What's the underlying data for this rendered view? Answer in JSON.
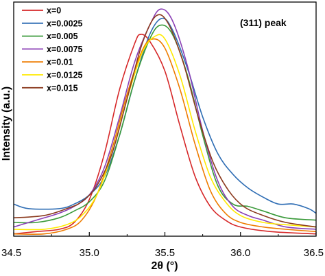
{
  "chart_data": {
    "type": "line",
    "xlabel": "2θ (°)",
    "ylabel": "Intensity (a.u.)",
    "annotation": "(311) peak",
    "xlim": [
      34.5,
      36.5
    ],
    "x_ticks": [
      "34.5",
      "35.0",
      "35.5",
      "36.0",
      "36.5"
    ],
    "y_ticks_shown": false,
    "ylim": [
      0,
      100
    ],
    "legend_position": "top-left",
    "grid": false,
    "series": [
      {
        "name": "x=0",
        "color": "#d62728",
        "points": [
          [
            34.5,
            1
          ],
          [
            34.65,
            2
          ],
          [
            34.8,
            3
          ],
          [
            34.9,
            6
          ],
          [
            35.0,
            16
          ],
          [
            35.1,
            36
          ],
          [
            35.2,
            64
          ],
          [
            35.3,
            84
          ],
          [
            35.34,
            88
          ],
          [
            35.4,
            85
          ],
          [
            35.5,
            72
          ],
          [
            35.6,
            48
          ],
          [
            35.7,
            26
          ],
          [
            35.8,
            13
          ],
          [
            35.9,
            7
          ],
          [
            36.0,
            4
          ],
          [
            36.2,
            2
          ],
          [
            36.5,
            1
          ]
        ]
      },
      {
        "name": "x=0.0025",
        "color": "#2e6db4",
        "points": [
          [
            34.5,
            14
          ],
          [
            34.6,
            12
          ],
          [
            34.8,
            12
          ],
          [
            34.9,
            14
          ],
          [
            35.0,
            18
          ],
          [
            35.1,
            26
          ],
          [
            35.2,
            44
          ],
          [
            35.3,
            68
          ],
          [
            35.4,
            88
          ],
          [
            35.48,
            95
          ],
          [
            35.55,
            90
          ],
          [
            35.65,
            73
          ],
          [
            35.75,
            52
          ],
          [
            35.85,
            36
          ],
          [
            35.95,
            27
          ],
          [
            36.05,
            21
          ],
          [
            36.15,
            17
          ],
          [
            36.25,
            14
          ],
          [
            36.35,
            14
          ],
          [
            36.45,
            12
          ],
          [
            36.5,
            10
          ]
        ]
      },
      {
        "name": "x=0.005",
        "color": "#3a9a3a",
        "points": [
          [
            34.5,
            6
          ],
          [
            34.65,
            6
          ],
          [
            34.8,
            8
          ],
          [
            34.9,
            11
          ],
          [
            35.0,
            15
          ],
          [
            35.1,
            24
          ],
          [
            35.2,
            44
          ],
          [
            35.3,
            68
          ],
          [
            35.4,
            86
          ],
          [
            35.47,
            92
          ],
          [
            35.55,
            88
          ],
          [
            35.65,
            70
          ],
          [
            35.75,
            44
          ],
          [
            35.85,
            22
          ],
          [
            35.95,
            14
          ],
          [
            36.05,
            13
          ],
          [
            36.15,
            11
          ],
          [
            36.3,
            8
          ],
          [
            36.5,
            7
          ]
        ]
      },
      {
        "name": "x=0.0075",
        "color": "#8a3fb5",
        "points": [
          [
            34.5,
            4
          ],
          [
            34.65,
            7
          ],
          [
            34.8,
            10
          ],
          [
            34.9,
            13
          ],
          [
            35.0,
            18
          ],
          [
            35.1,
            30
          ],
          [
            35.2,
            52
          ],
          [
            35.3,
            76
          ],
          [
            35.4,
            92
          ],
          [
            35.47,
            99
          ],
          [
            35.55,
            94
          ],
          [
            35.65,
            74
          ],
          [
            35.75,
            46
          ],
          [
            35.85,
            24
          ],
          [
            35.95,
            13
          ],
          [
            36.05,
            9
          ],
          [
            36.15,
            7
          ],
          [
            36.3,
            4
          ],
          [
            36.5,
            3
          ]
        ]
      },
      {
        "name": "x=0.01",
        "color": "#ee7c00",
        "points": [
          [
            34.5,
            1
          ],
          [
            34.7,
            1
          ],
          [
            34.85,
            3
          ],
          [
            34.95,
            7
          ],
          [
            35.05,
            18
          ],
          [
            35.15,
            38
          ],
          [
            35.25,
            62
          ],
          [
            35.35,
            81
          ],
          [
            35.42,
            86
          ],
          [
            35.5,
            82
          ],
          [
            35.6,
            64
          ],
          [
            35.7,
            40
          ],
          [
            35.8,
            20
          ],
          [
            35.9,
            10
          ],
          [
            36.0,
            6
          ],
          [
            36.15,
            4
          ],
          [
            36.3,
            3
          ],
          [
            36.5,
            2
          ]
        ]
      },
      {
        "name": "x=0.0125",
        "color": "#ffea00",
        "points": [
          [
            34.5,
            3
          ],
          [
            34.7,
            3
          ],
          [
            34.85,
            5
          ],
          [
            34.95,
            9
          ],
          [
            35.05,
            18
          ],
          [
            35.15,
            36
          ],
          [
            35.25,
            60
          ],
          [
            35.35,
            80
          ],
          [
            35.43,
            87
          ],
          [
            35.5,
            86
          ],
          [
            35.6,
            70
          ],
          [
            35.7,
            46
          ],
          [
            35.8,
            26
          ],
          [
            35.9,
            15
          ],
          [
            36.0,
            9
          ],
          [
            36.15,
            6
          ],
          [
            36.3,
            5
          ],
          [
            36.5,
            4
          ]
        ]
      },
      {
        "name": "x=0.015",
        "color": "#8b3a1e",
        "points": [
          [
            34.5,
            8
          ],
          [
            34.7,
            9
          ],
          [
            34.85,
            12
          ],
          [
            34.95,
            15
          ],
          [
            35.05,
            22
          ],
          [
            35.15,
            36
          ],
          [
            35.25,
            60
          ],
          [
            35.35,
            84
          ],
          [
            35.44,
            96
          ],
          [
            35.52,
            93
          ],
          [
            35.62,
            76
          ],
          [
            35.72,
            52
          ],
          [
            35.82,
            32
          ],
          [
            35.92,
            20
          ],
          [
            36.02,
            13
          ],
          [
            36.15,
            9
          ],
          [
            36.3,
            6
          ],
          [
            36.5,
            4
          ]
        ]
      }
    ]
  }
}
